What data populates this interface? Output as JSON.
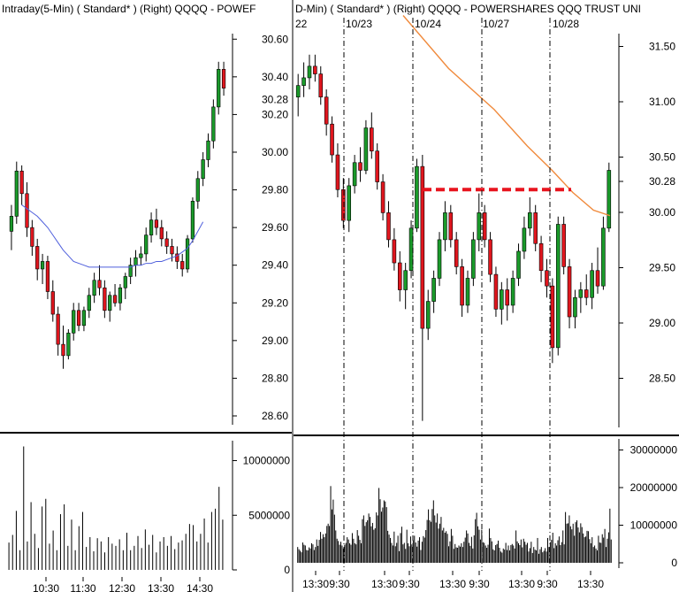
{
  "chart_data": [
    {
      "type": "candlestick",
      "title": "Intraday(5-Min) ( Standard* )   (Right)   QQQQ - POWEF",
      "yaxis": {
        "ticks": [
          "30.60",
          "30.40",
          "30.20",
          "30.00",
          "29.80",
          "29.60",
          "29.40",
          "29.20",
          "29.00",
          "28.80",
          "28.60"
        ],
        "range": [
          28.6,
          30.62
        ],
        "highlight": "30.28"
      },
      "xaxis": {
        "ticks": [
          "10:30",
          "11:30",
          "12:30",
          "13:30",
          "14:30"
        ]
      },
      "ohlc": [
        [
          29.58,
          29.72,
          29.48,
          29.66
        ],
        [
          29.66,
          29.95,
          29.62,
          29.9
        ],
        [
          29.9,
          29.93,
          29.72,
          29.78
        ],
        [
          29.78,
          29.84,
          29.55,
          29.6
        ],
        [
          29.6,
          29.64,
          29.45,
          29.5
        ],
        [
          29.5,
          29.54,
          29.32,
          29.38
        ],
        [
          29.38,
          29.46,
          29.3,
          29.42
        ],
        [
          29.42,
          29.45,
          29.22,
          29.26
        ],
        [
          29.26,
          29.32,
          29.1,
          29.14
        ],
        [
          29.14,
          29.18,
          28.92,
          28.98
        ],
        [
          28.98,
          29.08,
          28.85,
          28.92
        ],
        [
          28.92,
          29.06,
          28.9,
          29.04
        ],
        [
          29.04,
          29.2,
          29.0,
          29.16
        ],
        [
          29.16,
          29.2,
          29.05,
          29.08
        ],
        [
          29.08,
          29.18,
          29.05,
          29.16
        ],
        [
          29.16,
          29.28,
          29.12,
          29.24
        ],
        [
          29.24,
          29.36,
          29.2,
          29.32
        ],
        [
          29.32,
          29.4,
          29.24,
          29.28
        ],
        [
          29.28,
          29.32,
          29.12,
          29.16
        ],
        [
          29.16,
          29.26,
          29.1,
          29.24
        ],
        [
          29.24,
          29.3,
          29.18,
          29.2
        ],
        [
          29.2,
          29.3,
          29.16,
          29.28
        ],
        [
          29.28,
          29.36,
          29.22,
          29.34
        ],
        [
          29.34,
          29.44,
          29.3,
          29.4
        ],
        [
          29.4,
          29.48,
          29.34,
          29.44
        ],
        [
          29.44,
          29.5,
          29.4,
          29.46
        ],
        [
          29.46,
          29.6,
          29.42,
          29.56
        ],
        [
          29.56,
          29.68,
          29.52,
          29.64
        ],
        [
          29.64,
          29.7,
          29.56,
          29.6
        ],
        [
          29.6,
          29.64,
          29.5,
          29.54
        ],
        [
          29.54,
          29.58,
          29.46,
          29.5
        ],
        [
          29.5,
          29.54,
          29.42,
          29.46
        ],
        [
          29.46,
          29.5,
          29.38,
          29.42
        ],
        [
          29.42,
          29.46,
          29.34,
          29.38
        ],
        [
          29.38,
          29.56,
          29.36,
          29.54
        ],
        [
          29.54,
          29.76,
          29.52,
          29.74
        ],
        [
          29.74,
          29.9,
          29.7,
          29.86
        ],
        [
          29.86,
          30.0,
          29.82,
          29.96
        ],
        [
          29.96,
          30.1,
          29.92,
          30.06
        ],
        [
          30.06,
          30.28,
          30.02,
          30.24
        ],
        [
          30.24,
          30.48,
          30.2,
          30.44
        ],
        [
          30.44,
          30.48,
          30.3,
          30.34
        ]
      ],
      "ma": [
        29.72,
        29.7,
        29.68,
        29.66,
        29.63,
        29.6,
        29.56,
        29.52,
        29.48,
        29.45,
        29.42,
        29.41,
        29.4,
        29.39,
        29.39,
        29.39,
        29.39,
        29.39,
        29.39,
        29.39,
        29.39,
        29.39,
        29.4,
        29.4,
        29.41,
        29.41,
        29.42,
        29.42,
        29.43,
        29.44,
        29.45,
        29.47,
        29.49,
        29.53,
        29.58,
        29.63
      ],
      "ma_color": "#4f5fdc",
      "volume": {
        "ticks": [
          "10000000",
          "5000000",
          "0"
        ],
        "max": 11500000,
        "values": [
          2500000,
          3200000,
          5400000,
          1800000,
          11300000,
          2600000,
          6200000,
          3300000,
          2000000,
          5800000,
          6500000,
          2400000,
          3600000,
          1800000,
          5100000,
          6000000,
          2200000,
          4600000,
          1800000,
          4000000,
          5300000,
          2100000,
          3000000,
          1700000,
          2900000,
          2600000,
          1600000,
          3000000,
          2400000,
          2200000,
          2800000,
          1800000,
          3400000,
          1800000,
          2200000,
          3100000,
          2000000,
          3700000,
          2300000,
          3200000,
          1600000,
          2600000,
          3000000,
          2200000,
          3100000,
          1900000,
          2500000,
          2700000,
          3300000,
          4200000,
          4100000,
          2600000,
          3300000,
          4700000,
          2500000,
          5300000,
          5600000,
          7600000,
          4600000
        ]
      }
    },
    {
      "type": "candlestick",
      "title": "D-Min) ( Standard* )   (Right)   QQQQ - POWERSHARES QQQ TRUST UNI",
      "date_labels": [
        "22",
        "10/23",
        "10/24",
        "10/27",
        "10/28"
      ],
      "yaxis_left": {
        "ticks": [
          "30.60",
          "30.40",
          "30.28",
          "30.20",
          "30.00",
          "29.80",
          "29.60",
          "29.40",
          "29.20",
          "29.00",
          "28.80",
          "28.60"
        ],
        "range": [
          28.6,
          30.62
        ]
      },
      "yaxis_right": {
        "ticks": [
          "31.50",
          "31.00",
          "30.50",
          "30.28",
          "30.00",
          "29.50",
          "29.00",
          "28.50"
        ],
        "range": [
          28.08,
          31.6
        ]
      },
      "xaxis": {
        "ticks": [
          "13:30",
          "9:30",
          "13:30",
          "9:30",
          "13:30",
          "9:30",
          "13:30",
          "9:30",
          "13:30"
        ]
      },
      "resistance": {
        "value": 29.82,
        "color": "#e8141e"
      },
      "ma": {
        "color": "#f08a3c",
        "points": [
          [
            0.0,
            31.78
          ],
          [
            0.22,
            31.3
          ],
          [
            0.44,
            30.93
          ],
          [
            0.6,
            30.6
          ],
          [
            0.72,
            30.38
          ],
          [
            0.82,
            30.18
          ],
          [
            0.92,
            30.02
          ],
          [
            1.0,
            29.97
          ]
        ]
      },
      "ohlc": [
        [
          30.3,
          30.42,
          30.2,
          30.36
        ],
        [
          30.36,
          30.48,
          30.3,
          30.4
        ],
        [
          30.4,
          30.52,
          30.34,
          30.46
        ],
        [
          30.46,
          30.52,
          30.38,
          30.42
        ],
        [
          30.42,
          30.46,
          30.26,
          30.3
        ],
        [
          30.3,
          30.34,
          30.1,
          30.16
        ],
        [
          30.16,
          30.2,
          29.96,
          30.0
        ],
        [
          30.0,
          30.06,
          29.78,
          29.82
        ],
        [
          29.82,
          29.88,
          29.62,
          29.66
        ],
        [
          29.66,
          29.88,
          29.6,
          29.84
        ],
        [
          29.84,
          30.0,
          29.8,
          29.96
        ],
        [
          29.96,
          30.04,
          29.86,
          29.92
        ],
        [
          29.92,
          30.18,
          29.9,
          30.14
        ],
        [
          30.14,
          30.22,
          29.98,
          30.02
        ],
        [
          30.02,
          30.06,
          29.82,
          29.86
        ],
        [
          29.86,
          29.9,
          29.66,
          29.7
        ],
        [
          29.7,
          29.76,
          29.52,
          29.56
        ],
        [
          29.56,
          29.62,
          29.4,
          29.44
        ],
        [
          29.44,
          29.5,
          29.24,
          29.3
        ],
        [
          29.3,
          29.44,
          29.2,
          29.4
        ],
        [
          29.4,
          29.66,
          29.36,
          29.62
        ],
        [
          29.62,
          29.98,
          29.6,
          29.94
        ],
        [
          29.94,
          30.0,
          28.62,
          29.1
        ],
        [
          29.1,
          29.3,
          29.04,
          29.24
        ],
        [
          29.24,
          29.4,
          29.18,
          29.36
        ],
        [
          29.36,
          29.6,
          29.32,
          29.56
        ],
        [
          29.56,
          29.76,
          29.5,
          29.7
        ],
        [
          29.7,
          29.74,
          29.52,
          29.56
        ],
        [
          29.56,
          29.6,
          29.38,
          29.42
        ],
        [
          29.42,
          29.46,
          29.16,
          29.22
        ],
        [
          29.22,
          29.4,
          29.18,
          29.36
        ],
        [
          29.36,
          29.6,
          29.32,
          29.56
        ],
        [
          29.56,
          29.8,
          29.5,
          29.7
        ],
        [
          29.7,
          29.74,
          29.52,
          29.56
        ],
        [
          29.56,
          29.6,
          29.34,
          29.38
        ],
        [
          29.38,
          29.42,
          29.16,
          29.2
        ],
        [
          29.2,
          29.34,
          29.12,
          29.3
        ],
        [
          29.3,
          29.36,
          29.14,
          29.22
        ],
        [
          29.22,
          29.4,
          29.18,
          29.36
        ],
        [
          29.36,
          29.54,
          29.32,
          29.5
        ],
        [
          29.5,
          29.68,
          29.46,
          29.62
        ],
        [
          29.62,
          29.78,
          29.58,
          29.7
        ],
        [
          29.7,
          29.74,
          29.5,
          29.54
        ],
        [
          29.54,
          29.58,
          29.34,
          29.4
        ],
        [
          29.4,
          29.46,
          29.26,
          29.32
        ],
        [
          29.32,
          29.36,
          28.92,
          29.0
        ],
        [
          29.0,
          29.68,
          28.96,
          29.64
        ],
        [
          29.64,
          29.68,
          29.38,
          29.42
        ],
        [
          29.42,
          29.46,
          29.1,
          29.16
        ],
        [
          29.16,
          29.3,
          29.1,
          29.26
        ],
        [
          29.26,
          29.34,
          29.18,
          29.3
        ],
        [
          29.3,
          29.38,
          29.22,
          29.26
        ],
        [
          29.26,
          29.44,
          29.2,
          29.4
        ],
        [
          29.4,
          29.52,
          29.28,
          29.32
        ],
        [
          29.32,
          29.68,
          29.3,
          29.62
        ],
        [
          29.62,
          29.96,
          29.6,
          29.92
        ]
      ],
      "volume": {
        "ticks": [
          "30000000",
          "20000000",
          "10000000",
          "0"
        ],
        "max": 32000000,
        "values": [
          4200000,
          3600000,
          3200000,
          2800000,
          5400000,
          4800000,
          4600000,
          3400000,
          3300000,
          4100000,
          3800000,
          5200000,
          4900000,
          3400000,
          4200000,
          6200000,
          4500000,
          6100000,
          8200000,
          6400000,
          7600000,
          6800000,
          7800000,
          9800000,
          10400000,
          9800000,
          20400000,
          14200000,
          16800000,
          12800000,
          8600000,
          6400000,
          5800000,
          4800000,
          5600000,
          4600000,
          3800000,
          4800000,
          5300000,
          6800000,
          6200000,
          5200000,
          4800000,
          7900000,
          6400000,
          5200000,
          4900000,
          8700000,
          7200000,
          6100000,
          5200000,
          11600000,
          12600000,
          9800000,
          10800000,
          11300000,
          13100000,
          12200000,
          9700000,
          10600000,
          8800000,
          9200000,
          13400000,
          12600000,
          19900000,
          16900000,
          13600000,
          14700000,
          16600000,
          16300000,
          14800000,
          8500000,
          7500000,
          6600000,
          5300000,
          4600000,
          8300000,
          4400000,
          5300000,
          7200000,
          3100000,
          7900000,
          9600000,
          4900000,
          5300000,
          3700000,
          8800000,
          5200000,
          4400000,
          7000000,
          4900000,
          6000000,
          7200000,
          5400000,
          4300000,
          5900000,
          6800000,
          3400000,
          5600000,
          7100000,
          6700000,
          8700000,
          11400000,
          14200000,
          11300000,
          10900000,
          14300000,
          16600000,
          12600000,
          10700000,
          13100000,
          9100000,
          10400000,
          12200000,
          8600000,
          9300000,
          8000000,
          8400000,
          7700000,
          4400000,
          5700000,
          9000000,
          7200000,
          3700000,
          5000000,
          4100000,
          4000000,
          4600000,
          4300000,
          5200000,
          4200000,
          5600000,
          6700000,
          8600000,
          7800000,
          5300000,
          4500000,
          6900000,
          3800000,
          7300000,
          11600000,
          13300000,
          9700000,
          8800000,
          6200000,
          8800000,
          5500000,
          5300000,
          4600000,
          4000000,
          4800000,
          9100000,
          6600000,
          5700000,
          3600000,
          3300000,
          4700000,
          5000000,
          5900000,
          4000000,
          3000000,
          2700000,
          3800000,
          3500000,
          5300000,
          3400000,
          4600000,
          3300000,
          4700000,
          5000000,
          4600000,
          3800000,
          8600000,
          5700000,
          5200000,
          4700000,
          6200000,
          4100000,
          6400000,
          5600000,
          4800000,
          5300000,
          3000000,
          3900000,
          5600000,
          2600000,
          4200000,
          3500000,
          3300000,
          6600000,
          2400000,
          3600000,
          4200000,
          2800000,
          3200000,
          3900000,
          3000000,
          6600000,
          4200000,
          5500000,
          6100000,
          8000000,
          3900000,
          5200000,
          4600000,
          6000000,
          7000000,
          4700000,
          5500000,
          8600000,
          4900000,
          13500000,
          10400000,
          10500000,
          12600000,
          9700000,
          8900000,
          10400000,
          7200000,
          10800000,
          11300000,
          9400000,
          8100000,
          10500000,
          9500000,
          7800000,
          6800000,
          7000000,
          8500000,
          8400000,
          6300000,
          5200000,
          6800000,
          4200000,
          4600000,
          3800000,
          3300000,
          7200000,
          5400000,
          5300000,
          7600000,
          6700000,
          9000000,
          4200000,
          6400000,
          8100000,
          14400000,
          6200000
        ]
      }
    }
  ],
  "colors": {
    "up": "#1a9a2a",
    "down": "#e0161e",
    "grid_dash": "#000000"
  }
}
